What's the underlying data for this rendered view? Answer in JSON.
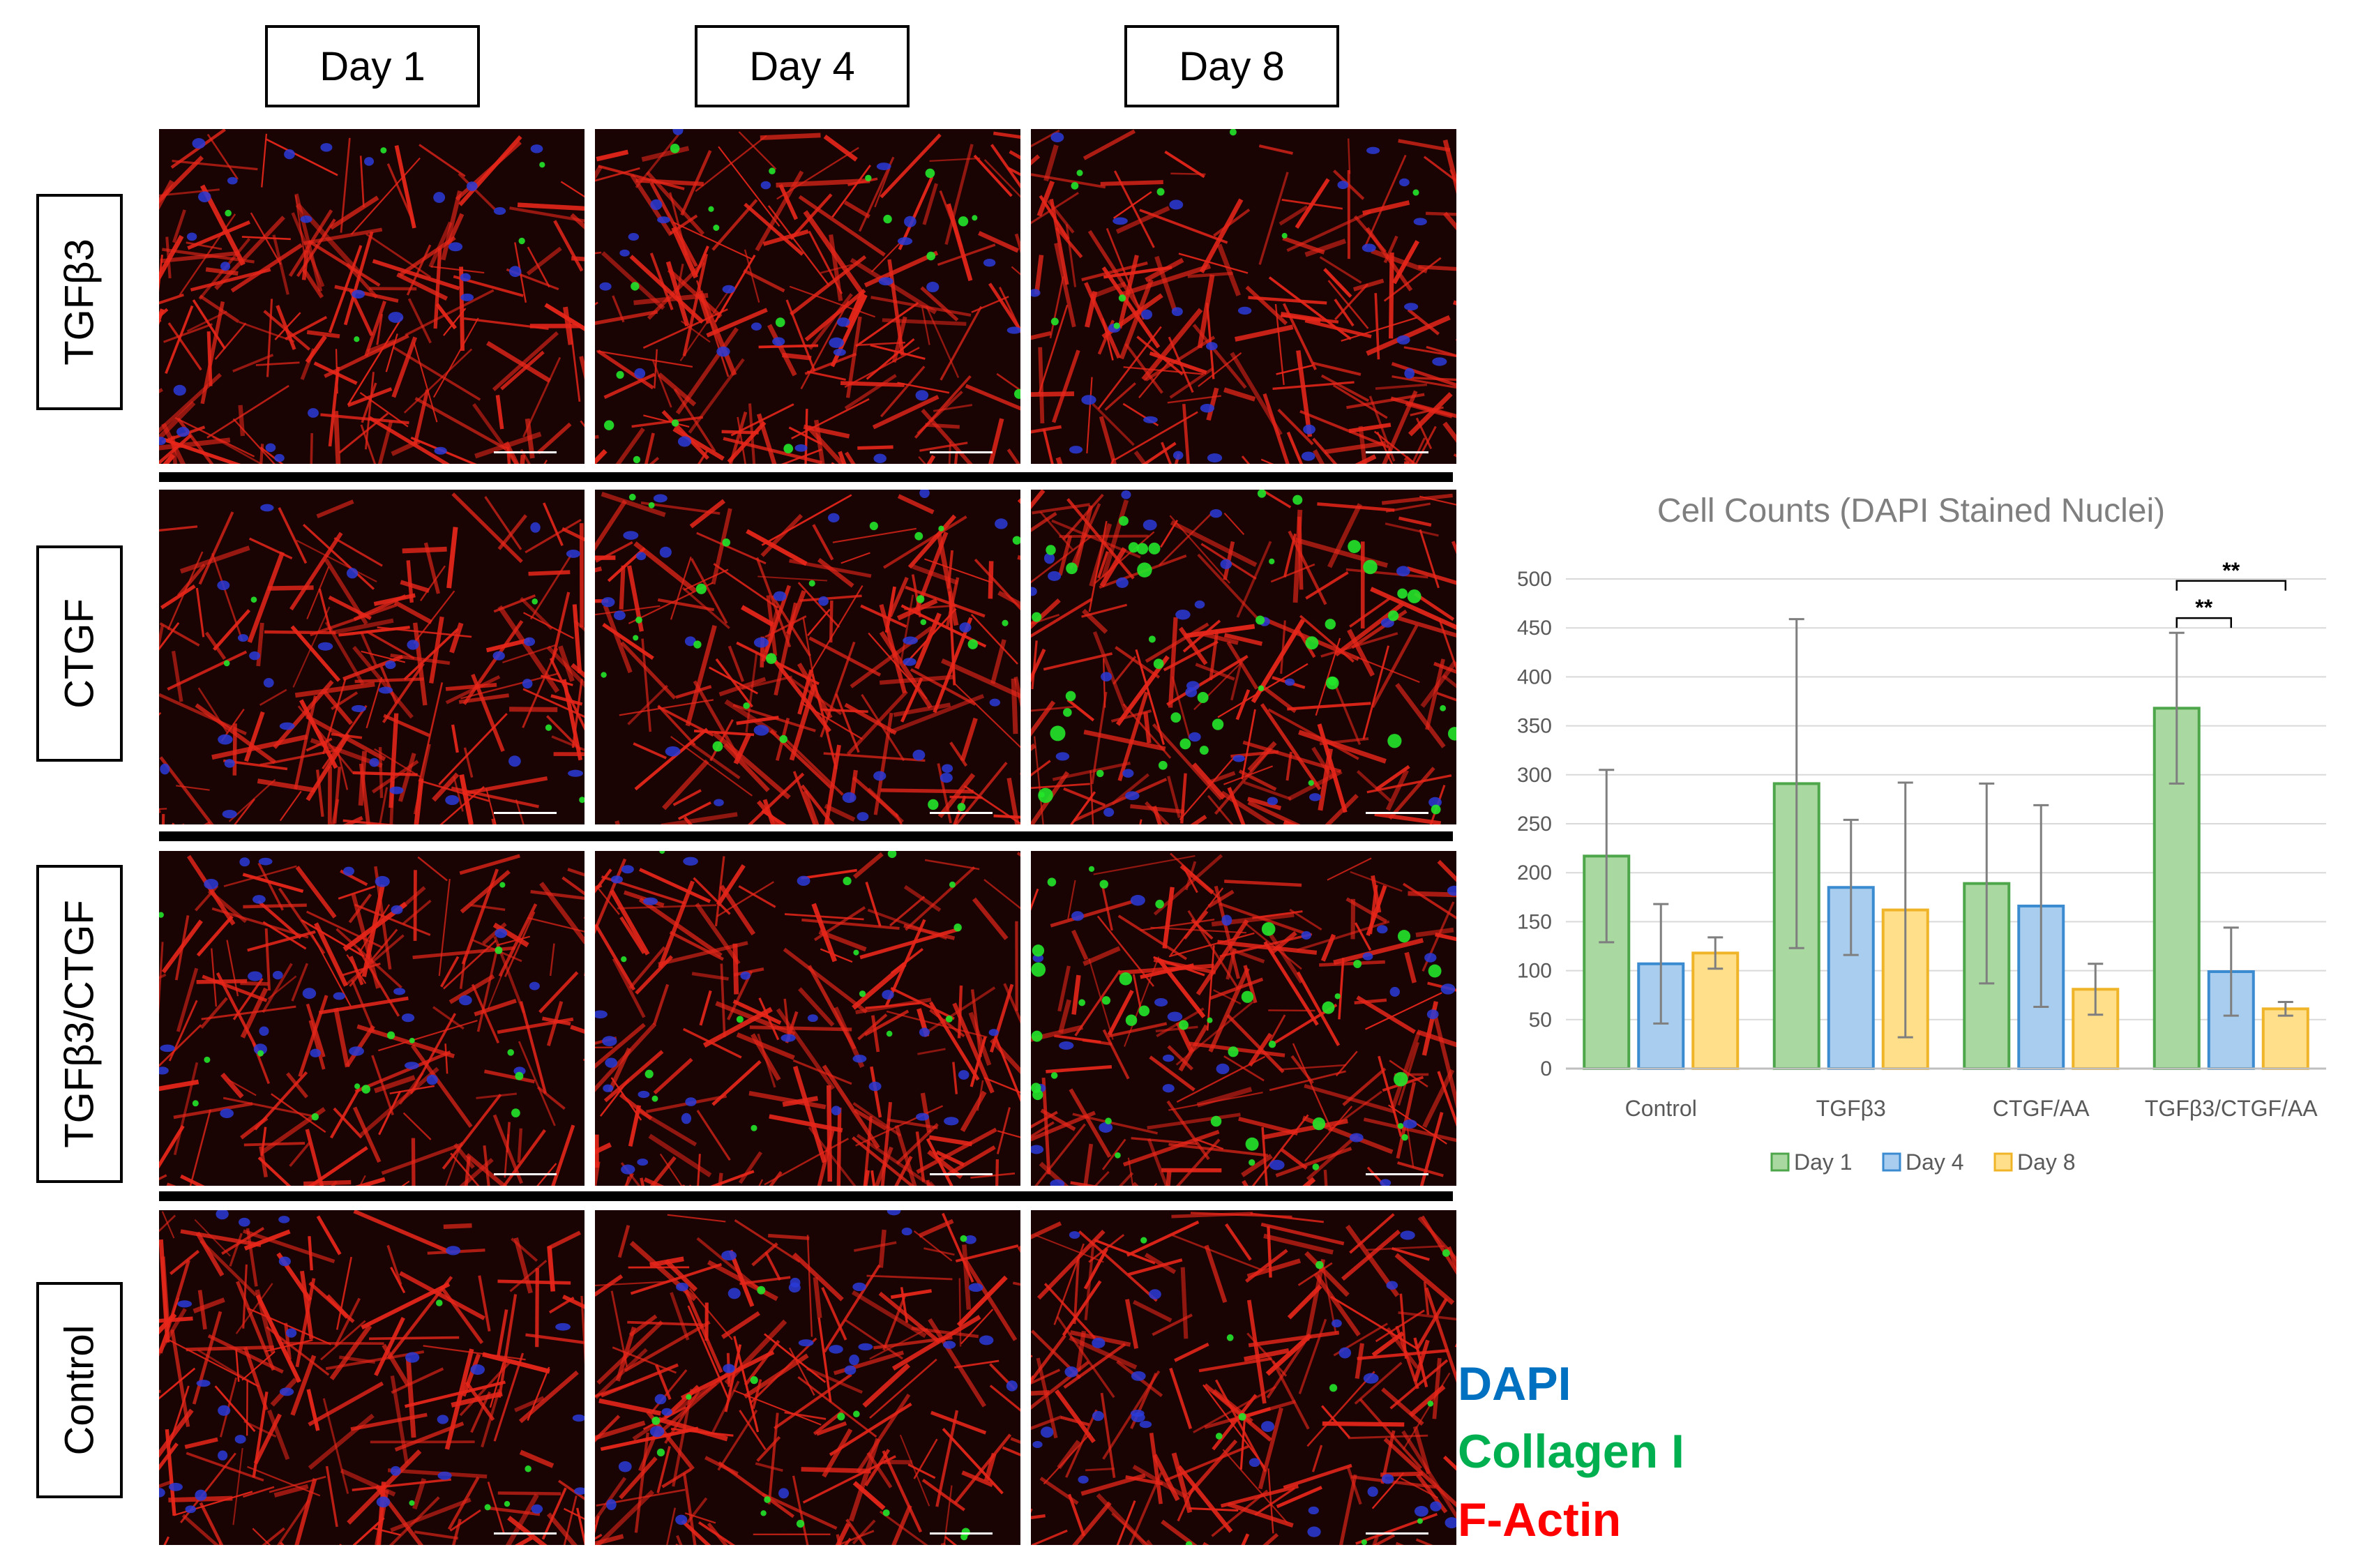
{
  "columns": [
    "Day 1",
    "Day 4",
    "Day 8"
  ],
  "rows": [
    "TGFβ3",
    "CTGF",
    "TGFβ3/CTGF",
    "Control"
  ],
  "stain_legend": [
    {
      "label": "DAPI",
      "color": "#0070c0"
    },
    {
      "label": "Collagen I",
      "color": "#00b050"
    },
    {
      "label": "F-Actin",
      "color": "#ff0000"
    }
  ],
  "micrograph_colors": {
    "background": "#1a0403",
    "actin": "#e8261a",
    "nuclei": "#2a3bd8",
    "collagen": "#22e62a"
  },
  "collagen_level": [
    [
      0.1,
      0.4,
      0.2
    ],
    [
      0.1,
      0.5,
      0.9
    ],
    [
      0.3,
      0.3,
      0.8
    ],
    [
      0.1,
      0.3,
      0.25
    ]
  ],
  "chart_data": {
    "type": "bar",
    "title": "Cell Counts (DAPI Stained Nuclei)",
    "categories": [
      "Control",
      "TGFβ3",
      "CTGF/AA",
      "TGFβ3/CTGF/AA"
    ],
    "ylim": [
      0,
      500
    ],
    "yticks": [
      "0",
      "50",
      "100",
      "150",
      "200",
      "250",
      "300",
      "350",
      "400",
      "450",
      "500"
    ],
    "grid": true,
    "legend_position": "bottom",
    "series": [
      {
        "name": "Day 1",
        "values": [
          217,
          291,
          189,
          368
        ],
        "error": [
          88,
          168,
          102,
          77
        ],
        "fill": "#a9d8a0",
        "stroke": "#4ea64b"
      },
      {
        "name": "Day 4",
        "values": [
          107,
          185,
          166,
          99
        ],
        "error": [
          61,
          69,
          103,
          45
        ],
        "fill": "#a9cdef",
        "stroke": "#3a8bd0"
      },
      {
        "name": "Day 8",
        "values": [
          118,
          162,
          81,
          61
        ],
        "error": [
          16,
          130,
          26,
          7
        ],
        "fill": "#ffdf8a",
        "stroke": "#f0b428"
      }
    ],
    "significance": [
      {
        "category": "TGFβ3/CTGF/AA",
        "from": "Day 1",
        "to": "Day 4",
        "label": "**"
      },
      {
        "category": "TGFβ3/CTGF/AA",
        "from": "Day 1",
        "to": "Day 8",
        "label": "**"
      }
    ]
  }
}
